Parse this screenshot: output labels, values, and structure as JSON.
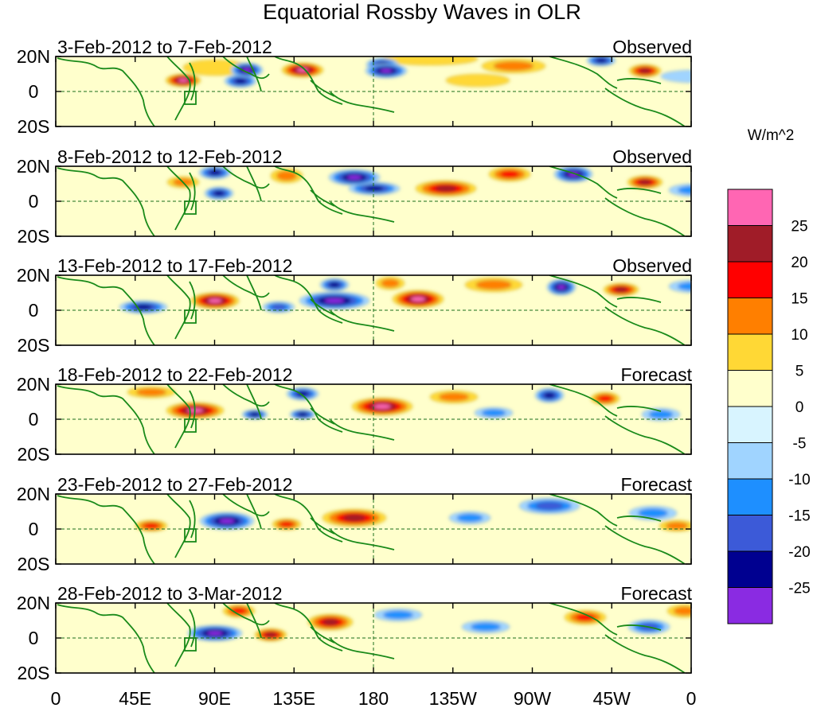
{
  "chart_data": {
    "type": "heatmap",
    "title": "Equatorial Rossby Waves in OLR",
    "units": "W/m^2",
    "x_ticks": [
      "0",
      "45E",
      "90E",
      "135E",
      "180",
      "135W",
      "90W",
      "45W",
      "0"
    ],
    "y_ticks": [
      "20N",
      "0",
      "20S"
    ],
    "colorbar": {
      "colors": [
        "#ff66b3",
        "#a01c28",
        "#ff0000",
        "#ff7f00",
        "#ffd835",
        "#ffffcc",
        "#d8f4ff",
        "#a0d4ff",
        "#1e8fff",
        "#3c5ad8",
        "#000090",
        "#8a2be2"
      ],
      "labels": [
        "25",
        "20",
        "15",
        "10",
        "5",
        "0",
        "-5",
        "-10",
        "-15",
        "-20",
        "-25"
      ]
    },
    "panels": [
      {
        "period": "3-Feb-2012 to 7-Feb-2012",
        "status": "Observed",
        "blobs": [
          [
            310,
            17,
            26,
            9,
            25
          ],
          [
            240,
            17,
            20,
            9,
            -25
          ],
          [
            415,
            18,
            26,
            9,
            -25
          ],
          [
            410,
            10,
            20,
            8,
            -20
          ],
          [
            160,
            30,
            22,
            8,
            25
          ],
          [
            232,
            31,
            20,
            8,
            -20
          ],
          [
            685,
            5,
            18,
            7,
            -20
          ],
          [
            740,
            18,
            20,
            8,
            20
          ],
          [
            575,
            12,
            40,
            9,
            10
          ],
          [
            200,
            14,
            40,
            10,
            5
          ],
          [
            530,
            30,
            40,
            8,
            5
          ],
          [
            800,
            25,
            40,
            8,
            -5
          ],
          [
            470,
            3,
            60,
            8,
            5
          ]
        ]
      },
      {
        "period": "8-Feb-2012 to 12-Feb-2012",
        "status": "Observed",
        "blobs": [
          [
            375,
            14,
            32,
            10,
            -25
          ],
          [
            400,
            28,
            32,
            8,
            -20
          ],
          [
            490,
            28,
            38,
            10,
            20
          ],
          [
            650,
            10,
            24,
            10,
            -25
          ],
          [
            570,
            10,
            26,
            9,
            15
          ],
          [
            740,
            20,
            22,
            8,
            20
          ],
          [
            290,
            12,
            20,
            9,
            10
          ],
          [
            200,
            8,
            20,
            8,
            -20
          ],
          [
            205,
            34,
            18,
            8,
            -20
          ],
          [
            160,
            20,
            20,
            7,
            10
          ],
          [
            800,
            30,
            30,
            8,
            -10
          ]
        ]
      },
      {
        "period": "13-Feb-2012 to 17-Feb-2012",
        "status": "Observed",
        "blobs": [
          [
            350,
            32,
            44,
            11,
            -25
          ],
          [
            455,
            30,
            32,
            11,
            25
          ],
          [
            350,
            12,
            18,
            8,
            -20
          ],
          [
            200,
            32,
            30,
            10,
            25
          ],
          [
            635,
            15,
            18,
            10,
            -25
          ],
          [
            710,
            18,
            22,
            8,
            20
          ],
          [
            420,
            10,
            18,
            8,
            10
          ],
          [
            550,
            12,
            36,
            9,
            10
          ],
          [
            110,
            40,
            30,
            8,
            -20
          ],
          [
            800,
            14,
            30,
            8,
            -10
          ],
          [
            280,
            40,
            20,
            7,
            -15
          ]
        ]
      },
      {
        "period": "18-Feb-2012 to 22-Feb-2012",
        "status": "Forecast",
        "blobs": [
          [
            410,
            28,
            38,
            11,
            25
          ],
          [
            175,
            33,
            36,
            10,
            25
          ],
          [
            620,
            14,
            18,
            9,
            -20
          ],
          [
            690,
            18,
            18,
            8,
            15
          ],
          [
            310,
            12,
            20,
            8,
            -20
          ],
          [
            250,
            38,
            16,
            6,
            -20
          ],
          [
            310,
            38,
            16,
            6,
            -20
          ],
          [
            550,
            36,
            24,
            7,
            -10
          ],
          [
            120,
            10,
            30,
            7,
            10
          ],
          [
            760,
            38,
            24,
            8,
            -10
          ],
          [
            500,
            16,
            30,
            8,
            10
          ]
        ]
      },
      {
        "period": "23-Feb-2012 to 27-Feb-2012",
        "status": "Forecast",
        "blobs": [
          [
            375,
            30,
            40,
            11,
            20
          ],
          [
            215,
            34,
            34,
            11,
            -25
          ],
          [
            290,
            38,
            18,
            7,
            15
          ],
          [
            120,
            40,
            20,
            7,
            15
          ],
          [
            620,
            15,
            38,
            10,
            -15
          ],
          [
            750,
            24,
            30,
            9,
            -10
          ],
          [
            520,
            30,
            26,
            8,
            -10
          ],
          [
            780,
            40,
            22,
            7,
            10
          ]
        ]
      },
      {
        "period": "28-Feb-2012 to 3-Mar-2012",
        "status": "Forecast",
        "blobs": [
          [
            345,
            24,
            28,
            10,
            20
          ],
          [
            200,
            38,
            34,
            10,
            -25
          ],
          [
            270,
            40,
            20,
            8,
            20
          ],
          [
            230,
            10,
            20,
            8,
            15
          ],
          [
            665,
            18,
            26,
            9,
            15
          ],
          [
            745,
            30,
            26,
            9,
            -15
          ],
          [
            540,
            30,
            30,
            8,
            -10
          ],
          [
            790,
            10,
            22,
            8,
            10
          ],
          [
            430,
            15,
            30,
            8,
            -10
          ]
        ]
      }
    ]
  }
}
